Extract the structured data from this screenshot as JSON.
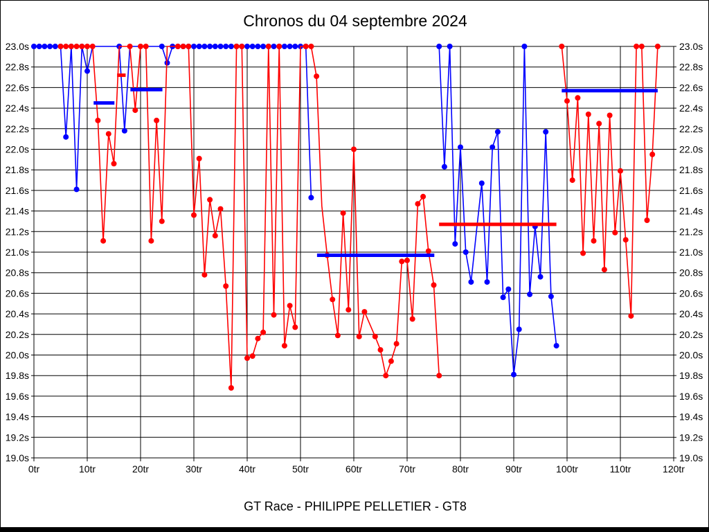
{
  "chart_data": {
    "type": "line",
    "title": "Chronos du 04 septembre 2024",
    "caption": "GT Race - PHILIPPE PELLETIER - GT8",
    "x_axis": {
      "min": 0,
      "max": 120,
      "step": 10,
      "suffix": "tr"
    },
    "y_axis": {
      "min": 19.0,
      "max": 23.0,
      "step": 0.2,
      "suffix": "s",
      "labels_both_sides": true,
      "clip_note": "lap times above 23.0s are clipped to the 23.0s line"
    },
    "grid": "on",
    "colors": {
      "red_series": "#ff0000",
      "blue_series": "#0000ff",
      "grid": "#000000",
      "text": "#000000"
    },
    "series": [
      {
        "name": "blue-driver-laps",
        "color": "#0000ff",
        "segments": [
          [
            [
              0,
              23,
              1
            ],
            [
              1,
              23,
              1
            ],
            [
              2,
              23,
              1
            ],
            [
              3,
              23,
              1
            ],
            [
              4,
              23,
              1
            ],
            [
              5,
              23,
              1
            ],
            [
              6,
              22.12,
              1
            ],
            [
              7,
              23,
              1
            ],
            [
              8,
              21.61,
              1
            ],
            [
              9,
              23,
              1
            ],
            [
              10,
              22.76,
              1
            ],
            [
              11,
              23,
              0
            ],
            [
              12,
              23,
              0
            ],
            [
              13,
              23,
              0
            ],
            [
              14,
              23,
              0
            ],
            [
              15,
              23,
              0
            ],
            [
              16,
              23,
              1
            ],
            [
              17,
              22.18,
              1
            ],
            [
              18,
              23,
              0
            ],
            [
              19,
              23,
              0
            ],
            [
              20,
              23,
              0
            ],
            [
              21,
              23,
              0
            ],
            [
              22,
              23,
              0
            ],
            [
              23,
              23,
              0
            ],
            [
              24,
              23,
              1
            ],
            [
              25,
              22.84,
              1
            ],
            [
              26,
              23,
              1
            ],
            [
              27,
              23,
              1
            ],
            [
              28,
              23,
              1
            ],
            [
              29,
              23,
              1
            ],
            [
              30,
              23,
              1
            ],
            [
              31,
              23,
              1
            ],
            [
              32,
              23,
              1
            ],
            [
              33,
              23,
              1
            ],
            [
              34,
              23,
              1
            ],
            [
              35,
              23,
              1
            ],
            [
              36,
              23,
              1
            ],
            [
              37,
              23,
              1
            ],
            [
              38,
              23,
              1
            ],
            [
              39,
              23,
              1
            ],
            [
              40,
              23,
              1
            ],
            [
              41,
              23,
              1
            ],
            [
              42,
              23,
              1
            ],
            [
              43,
              23,
              1
            ],
            [
              44,
              23,
              1
            ],
            [
              45,
              23,
              1
            ],
            [
              46,
              23,
              1
            ],
            [
              47,
              23,
              1
            ],
            [
              48,
              23,
              1
            ],
            [
              49,
              23,
              1
            ],
            [
              50,
              23,
              1
            ],
            [
              51,
              23,
              1
            ],
            [
              52,
              21.53,
              1
            ]
          ],
          [
            [
              76,
              23,
              1
            ],
            [
              77,
              21.83,
              1
            ],
            [
              78,
              23,
              1
            ],
            [
              79,
              21.08,
              1
            ],
            [
              80,
              22.02,
              1
            ],
            [
              81,
              21.0,
              1
            ],
            [
              82,
              20.71,
              1
            ],
            [
              83,
              21.2,
              0
            ],
            [
              84,
              21.67,
              1
            ],
            [
              85,
              20.71,
              1
            ],
            [
              86,
              22.02,
              1
            ],
            [
              87,
              22.17,
              1
            ],
            [
              88,
              20.56,
              1
            ],
            [
              89,
              20.64,
              1
            ],
            [
              90,
              19.81,
              1
            ],
            [
              91,
              20.25,
              1
            ],
            [
              92,
              23,
              1
            ],
            [
              93,
              20.59,
              1
            ],
            [
              94,
              21.25,
              1
            ],
            [
              95,
              20.76,
              1
            ],
            [
              96,
              22.17,
              1
            ],
            [
              97,
              20.57,
              1
            ],
            [
              98,
              20.09,
              1
            ]
          ]
        ]
      },
      {
        "name": "red-driver-laps",
        "color": "#ff0000",
        "segments": [
          [
            [
              5,
              23,
              1
            ],
            [
              6,
              23,
              1
            ],
            [
              7,
              23,
              1
            ],
            [
              8,
              23,
              1
            ],
            [
              9,
              23,
              1
            ],
            [
              10,
              23,
              1
            ],
            [
              11,
              23,
              1
            ],
            [
              12,
              22.28,
              1
            ],
            [
              13,
              21.11,
              1
            ],
            [
              14,
              22.15,
              1
            ],
            [
              15,
              21.86,
              1
            ],
            [
              16,
              23,
              0
            ],
            [
              17,
              23,
              0
            ],
            [
              18,
              23,
              1
            ],
            [
              19,
              22.38,
              1
            ],
            [
              20,
              23,
              1
            ],
            [
              21,
              23,
              1
            ],
            [
              22,
              21.11,
              1
            ],
            [
              23,
              22.28,
              1
            ],
            [
              24,
              21.3,
              1
            ],
            [
              25,
              23,
              0
            ],
            [
              26,
              23,
              0
            ],
            [
              27,
              23,
              1
            ],
            [
              28,
              23,
              1
            ],
            [
              29,
              23,
              1
            ],
            [
              30,
              21.36,
              1
            ],
            [
              31,
              21.91,
              1
            ],
            [
              32,
              20.78,
              1
            ],
            [
              33,
              21.51,
              1
            ],
            [
              34,
              21.16,
              1
            ],
            [
              35,
              21.42,
              1
            ],
            [
              36,
              20.67,
              1
            ],
            [
              37,
              19.68,
              1
            ],
            [
              38,
              23,
              1
            ],
            [
              39,
              23,
              1
            ],
            [
              40,
              19.97,
              1
            ],
            [
              41,
              19.99,
              1
            ],
            [
              42,
              20.16,
              1
            ],
            [
              43,
              20.22,
              1
            ],
            [
              44,
              23,
              1
            ],
            [
              45,
              20.39,
              1
            ],
            [
              46,
              23,
              1
            ],
            [
              47,
              20.09,
              1
            ],
            [
              48,
              20.48,
              1
            ],
            [
              49,
              20.27,
              1
            ],
            [
              50,
              23,
              0
            ],
            [
              51,
              23,
              1
            ],
            [
              52,
              23,
              1
            ],
            [
              53,
              22.71,
              1
            ],
            [
              54,
              21.45,
              0
            ],
            [
              55,
              20.97,
              1
            ],
            [
              56,
              20.54,
              1
            ],
            [
              57,
              20.19,
              1
            ],
            [
              58,
              21.38,
              1
            ],
            [
              59,
              20.44,
              1
            ],
            [
              60,
              22.0,
              1
            ],
            [
              61,
              20.18,
              1
            ],
            [
              62,
              20.42,
              1
            ],
            [
              63,
              20.3,
              0
            ],
            [
              64,
              20.18,
              1
            ],
            [
              65,
              20.05,
              1
            ],
            [
              66,
              19.8,
              1
            ],
            [
              67,
              19.94,
              1
            ],
            [
              68,
              20.11,
              1
            ],
            [
              69,
              20.91,
              1
            ],
            [
              70,
              20.92,
              1
            ],
            [
              71,
              20.35,
              1
            ],
            [
              72,
              21.47,
              1
            ],
            [
              73,
              21.54,
              1
            ],
            [
              74,
              21.01,
              1
            ],
            [
              75,
              20.68,
              1
            ],
            [
              76,
              19.8,
              1
            ]
          ],
          [
            [
              99,
              23,
              1
            ],
            [
              100,
              22.47,
              1
            ],
            [
              101,
              21.7,
              1
            ],
            [
              102,
              22.5,
              1
            ],
            [
              103,
              20.99,
              1
            ],
            [
              104,
              22.34,
              1
            ],
            [
              105,
              21.11,
              1
            ],
            [
              106,
              22.25,
              1
            ],
            [
              107,
              20.83,
              1
            ],
            [
              108,
              22.33,
              1
            ],
            [
              109,
              21.19,
              1
            ],
            [
              110,
              21.79,
              1
            ],
            [
              111,
              21.12,
              1
            ],
            [
              112,
              20.38,
              1
            ],
            [
              113,
              23,
              1
            ],
            [
              114,
              23,
              1
            ],
            [
              115,
              21.31,
              1
            ],
            [
              116,
              21.95,
              1
            ],
            [
              117,
              23,
              1
            ]
          ]
        ]
      }
    ],
    "stint_average_lines": [
      {
        "color": "#0000ff",
        "lap_from": 11.2,
        "lap_to": 15.1,
        "value": 22.45
      },
      {
        "color": "#0000ff",
        "lap_from": 18.1,
        "lap_to": 24.1,
        "value": 22.58
      },
      {
        "color": "#ff0000",
        "lap_from": 15.6,
        "lap_to": 17.2,
        "value": 22.72
      },
      {
        "color": "#0000ff",
        "lap_from": 53.1,
        "lap_to": 75.1,
        "value": 20.97
      },
      {
        "color": "#ff0000",
        "lap_from": 76.0,
        "lap_to": 98.0,
        "value": 21.27
      },
      {
        "color": "#0000ff",
        "lap_from": 99.0,
        "lap_to": 117.0,
        "value": 22.57
      }
    ],
    "layout": {
      "plot_left": 48,
      "plot_right": 972,
      "plot_top": 66,
      "plot_bottom": 660
    }
  }
}
